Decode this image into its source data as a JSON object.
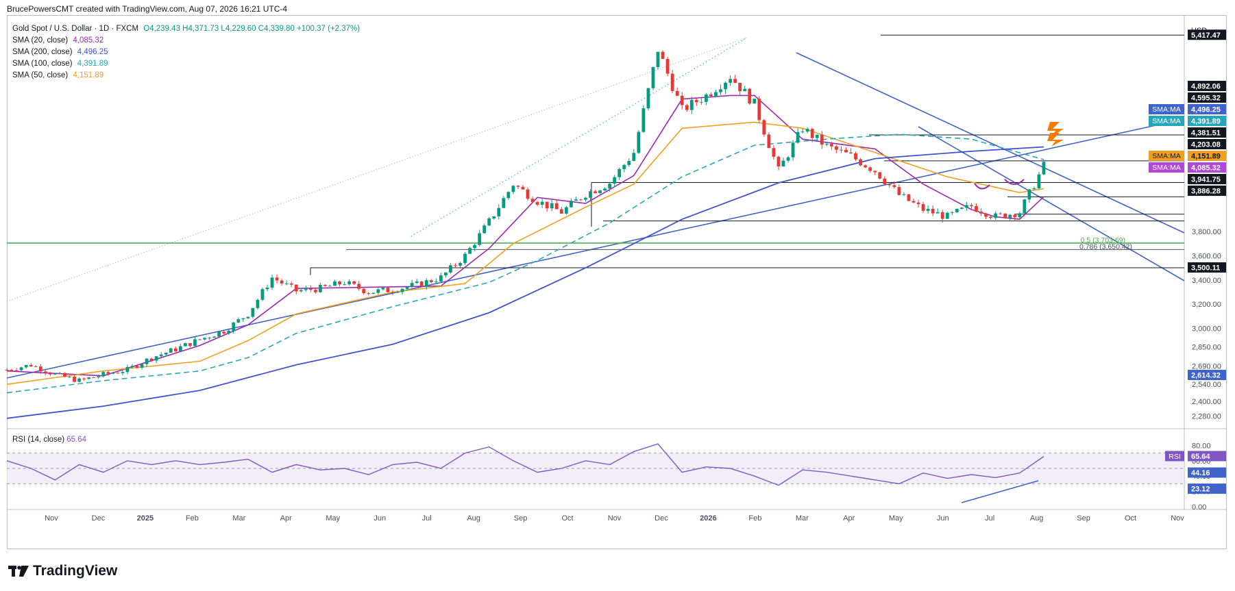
{
  "header": {
    "author_line": "BrucePowersCMT created with TradingView.com, Aug 07, 2026 16:21 UTC-4"
  },
  "legend": {
    "symbol": "Gold Spot / U.S. Dollar · 1D · FXCM",
    "ohlc": "O4,239.43  H4,371.73  L4,229.60  C4,339.80  +100.37 (+2.37%)",
    "sma20_label": "SMA (20, close)",
    "sma20_value": "4,085.32",
    "sma200_label": "SMA (200, close)",
    "sma200_value": "4,496.25",
    "sma100_label": "SMA (100, close)",
    "sma100_value": "4,391.89",
    "sma50_label": "SMA (50, close)",
    "sma50_value": "4,151.89"
  },
  "rsi_legend": {
    "label": "RSI (14, close)",
    "value": "65.64"
  },
  "footer": {
    "brand": "TradingView"
  },
  "colors": {
    "candle_up": "#089981",
    "candle_down": "#e53935",
    "sma20": "#9c27b0",
    "sma200": "#3f51d5",
    "sma100": "#26a6b8",
    "sma50": "#f0a020",
    "trend": "#3f63c8",
    "fib_green": "#4caf50",
    "rsi": "#7e57c2",
    "orange": "#f57c00"
  },
  "chart_data": {
    "type": "line",
    "title": "Gold Spot / U.S. Dollar · 1D · FXCM",
    "currency_label": "USD",
    "y_ticks": [
      "5,417.47",
      "4,892.06",
      "4,595.32",
      "4,496.25",
      "4,391.89",
      "4,381.51",
      "4,203.08",
      "4,151.89",
      "4,085.32",
      "3,941.75",
      "3,886.28",
      "3,800.00",
      "3,600.00",
      "3,500.11",
      "3,400.00",
      "3,200.00",
      "3,000.00",
      "2,850.00",
      "2,690.00",
      "2,614.32",
      "2,540.00",
      "2,400.00",
      "2,280.00"
    ],
    "x_ticks": [
      "Nov",
      "Dec",
      "2025",
      "Feb",
      "Mar",
      "Apr",
      "May",
      "Jun",
      "Jul",
      "Aug",
      "Sep",
      "Oct",
      "Nov",
      "Dec",
      "2026",
      "Feb",
      "Mar",
      "Apr",
      "May",
      "Jun",
      "Jul",
      "Aug",
      "Sep",
      "Oct",
      "Nov"
    ],
    "price_series": [
      [
        0,
        2660
      ],
      [
        1,
        2700
      ],
      [
        2,
        2620
      ],
      [
        3,
        2570
      ],
      [
        4,
        2620
      ],
      [
        5,
        2660
      ],
      [
        6,
        2760
      ],
      [
        7,
        2830
      ],
      [
        8,
        2910
      ],
      [
        9,
        2980
      ],
      [
        10,
        3120
      ],
      [
        11,
        3420
      ],
      [
        12,
        3310
      ],
      [
        13,
        3330
      ],
      [
        14,
        3380
      ],
      [
        15,
        3300
      ],
      [
        16,
        3320
      ],
      [
        17,
        3360
      ],
      [
        18,
        3420
      ],
      [
        19,
        3600
      ],
      [
        20,
        3880
      ],
      [
        21,
        4190
      ],
      [
        22,
        4050
      ],
      [
        23,
        3960
      ],
      [
        24,
        4110
      ],
      [
        25,
        4200
      ],
      [
        26,
        4450
      ],
      [
        27,
        5300
      ],
      [
        28,
        4800
      ],
      [
        29,
        4920
      ],
      [
        30,
        5080
      ],
      [
        31,
        4850
      ],
      [
        32,
        4300
      ],
      [
        33,
        4650
      ],
      [
        34,
        4500
      ],
      [
        35,
        4420
      ],
      [
        36,
        4300
      ],
      [
        37,
        4100
      ],
      [
        38,
        3980
      ],
      [
        39,
        3920
      ],
      [
        40,
        4010
      ],
      [
        41,
        3920
      ],
      [
        42,
        3960
      ],
      [
        43,
        4339.8
      ]
    ],
    "series": [
      {
        "name": "SMA (20, close)",
        "values": [
          [
            0,
            2650
          ],
          [
            4,
            2610
          ],
          [
            8,
            2860
          ],
          [
            10,
            3030
          ],
          [
            12,
            3330
          ],
          [
            18,
            3350
          ],
          [
            20,
            3660
          ],
          [
            22,
            4080
          ],
          [
            24,
            4030
          ],
          [
            26,
            4260
          ],
          [
            28,
            4890
          ],
          [
            30,
            4920
          ],
          [
            31,
            4920
          ],
          [
            33,
            4560
          ],
          [
            36,
            4480
          ],
          [
            38,
            4190
          ],
          [
            40,
            3980
          ],
          [
            41,
            3920
          ],
          [
            42,
            3900
          ],
          [
            43,
            4085.32
          ]
        ]
      },
      {
        "name": "SMA (50, close)",
        "values": [
          [
            0,
            2540
          ],
          [
            4,
            2650
          ],
          [
            8,
            2730
          ],
          [
            10,
            2900
          ],
          [
            12,
            3120
          ],
          [
            16,
            3300
          ],
          [
            19,
            3370
          ],
          [
            21,
            3700
          ],
          [
            24,
            4000
          ],
          [
            26,
            4190
          ],
          [
            28,
            4650
          ],
          [
            31,
            4700
          ],
          [
            33,
            4650
          ],
          [
            36,
            4450
          ],
          [
            39,
            4250
          ],
          [
            42,
            4120
          ],
          [
            43,
            4151.89
          ]
        ]
      },
      {
        "name": "SMA (100, close)",
        "values": [
          [
            0,
            2470
          ],
          [
            4,
            2570
          ],
          [
            8,
            2650
          ],
          [
            10,
            2760
          ],
          [
            12,
            2960
          ],
          [
            16,
            3180
          ],
          [
            20,
            3380
          ],
          [
            22,
            3560
          ],
          [
            25,
            3870
          ],
          [
            28,
            4250
          ],
          [
            31,
            4510
          ],
          [
            34,
            4560
          ],
          [
            37,
            4600
          ],
          [
            40,
            4560
          ],
          [
            43,
            4391.89
          ]
        ]
      },
      {
        "name": "SMA (200, close)",
        "values": [
          [
            0,
            2260
          ],
          [
            4,
            2360
          ],
          [
            8,
            2490
          ],
          [
            12,
            2700
          ],
          [
            16,
            2870
          ],
          [
            20,
            3130
          ],
          [
            24,
            3500
          ],
          [
            28,
            3900
          ],
          [
            32,
            4200
          ],
          [
            36,
            4400
          ],
          [
            40,
            4460
          ],
          [
            43,
            4496.25
          ]
        ]
      }
    ],
    "horizontal_levels": [
      "5,417.47",
      "4,595.32",
      "4,381.51",
      "4,203.08",
      "4,085.32",
      "3,941.75",
      "3,886.28",
      "3,500.11"
    ],
    "fib_labels": [
      "0.5 (3,703.69)",
      "0.786 (3,650.42)"
    ],
    "axis_tags": [
      {
        "label": "",
        "value": "5,417.47",
        "style": "black"
      },
      {
        "label": "",
        "value": "4,892.06",
        "style": "black"
      },
      {
        "label": "",
        "value": "4,595.32",
        "style": "black"
      },
      {
        "label": "SMA:MA",
        "value": "4,496.25",
        "style": "blue"
      },
      {
        "label": "SMA:MA",
        "value": "4,391.89",
        "style": "teal"
      },
      {
        "label": "",
        "value": "4,381.51",
        "style": "black"
      },
      {
        "label": "",
        "value": "4,203.08",
        "style": "black"
      },
      {
        "label": "SMA:MA",
        "value": "4,151.89",
        "style": "orange"
      },
      {
        "label": "SMA:MA",
        "value": "4,085.32",
        "style": "purple"
      },
      {
        "label": "",
        "value": "3,941.75",
        "style": "black"
      },
      {
        "label": "",
        "value": "3,886.28",
        "style": "black"
      },
      {
        "label": "",
        "value": "3,500.11",
        "style": "black"
      },
      {
        "label": "",
        "value": "2,614.32",
        "style": "blue"
      }
    ],
    "rsi": {
      "label": "RSI (14, close)",
      "y_ticks": [
        "80.00",
        "60.00",
        "40.00",
        "20.00",
        "0.00"
      ],
      "tag_label": "RSI",
      "tag_value": "65.64",
      "tags": [
        "44.16",
        "23.12"
      ],
      "values": [
        [
          0,
          60
        ],
        [
          1,
          50
        ],
        [
          2,
          35
        ],
        [
          3,
          55
        ],
        [
          4,
          45
        ],
        [
          5,
          60
        ],
        [
          6,
          55
        ],
        [
          7,
          60
        ],
        [
          8,
          55
        ],
        [
          9,
          58
        ],
        [
          10,
          62
        ],
        [
          11,
          45
        ],
        [
          12,
          55
        ],
        [
          13,
          48
        ],
        [
          14,
          50
        ],
        [
          15,
          42
        ],
        [
          16,
          55
        ],
        [
          17,
          58
        ],
        [
          18,
          50
        ],
        [
          19,
          70
        ],
        [
          20,
          78
        ],
        [
          21,
          60
        ],
        [
          22,
          45
        ],
        [
          23,
          50
        ],
        [
          24,
          60
        ],
        [
          25,
          55
        ],
        [
          26,
          72
        ],
        [
          27,
          82
        ],
        [
          28,
          45
        ],
        [
          29,
          52
        ],
        [
          30,
          50
        ],
        [
          31,
          40
        ],
        [
          32,
          28
        ],
        [
          33,
          48
        ],
        [
          34,
          45
        ],
        [
          35,
          40
        ],
        [
          36,
          35
        ],
        [
          37,
          30
        ],
        [
          38,
          44
        ],
        [
          39,
          37
        ],
        [
          40,
          42
        ],
        [
          41,
          38
        ],
        [
          42,
          44
        ],
        [
          43,
          65.64
        ]
      ]
    }
  }
}
